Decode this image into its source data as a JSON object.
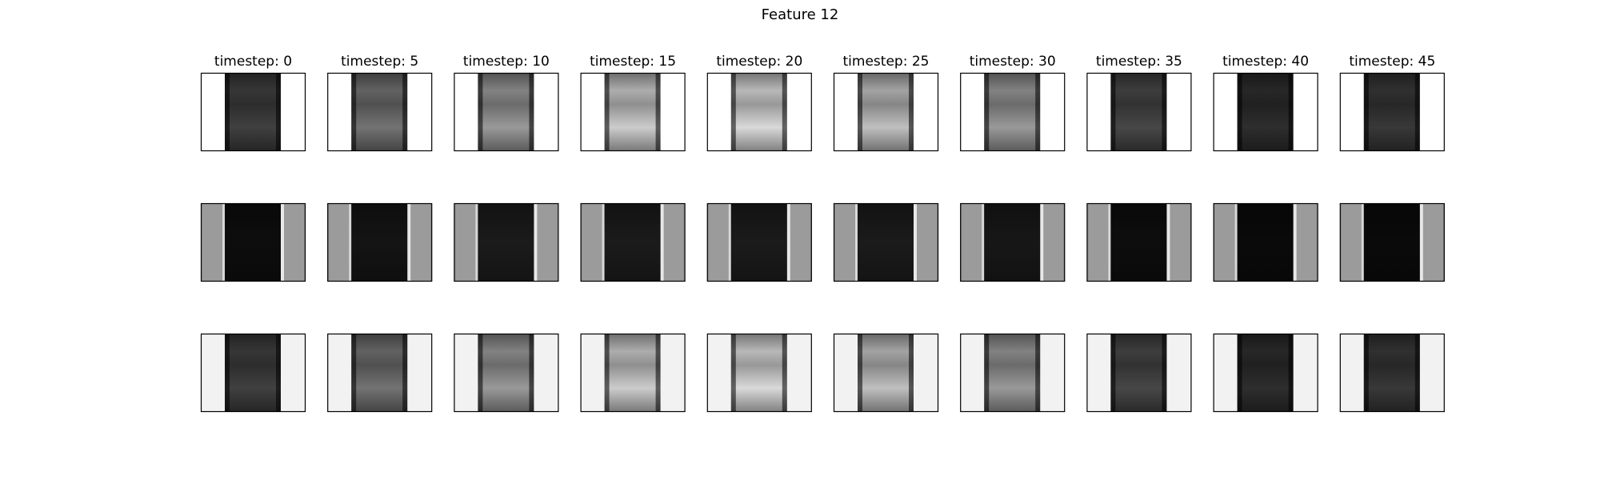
{
  "figure": {
    "title": "Feature 12"
  },
  "chart_data": {
    "type": "heatmap",
    "title": "Feature 12",
    "rows": 3,
    "columns": [
      {
        "title": "timestep: 0",
        "timestep": 0
      },
      {
        "title": "timestep: 5",
        "timestep": 5
      },
      {
        "title": "timestep: 10",
        "timestep": 10
      },
      {
        "title": "timestep: 15",
        "timestep": 15
      },
      {
        "title": "timestep: 20",
        "timestep": 20
      },
      {
        "title": "timestep: 25",
        "timestep": 25
      },
      {
        "title": "timestep: 30",
        "timestep": 30
      },
      {
        "title": "timestep: 35",
        "timestep": 35
      },
      {
        "title": "timestep: 40",
        "timestep": 40
      },
      {
        "title": "timestep: 45",
        "timestep": 45
      }
    ],
    "colormap": "gray",
    "axes_ticks": false,
    "row_panels": [
      {
        "background": "#ffffff",
        "central_strip_brightness": [
          0.25,
          0.45,
          0.6,
          0.8,
          0.85,
          0.75,
          0.6,
          0.28,
          0.18,
          0.22
        ]
      },
      {
        "background": "#8c8c8c",
        "central_strip_brightness": [
          0.04,
          0.06,
          0.08,
          0.08,
          0.08,
          0.08,
          0.07,
          0.04,
          0.03,
          0.03
        ]
      },
      {
        "background": "#f2f2f2",
        "central_strip_brightness": [
          0.25,
          0.45,
          0.6,
          0.8,
          0.85,
          0.75,
          0.6,
          0.28,
          0.18,
          0.22
        ]
      }
    ]
  }
}
